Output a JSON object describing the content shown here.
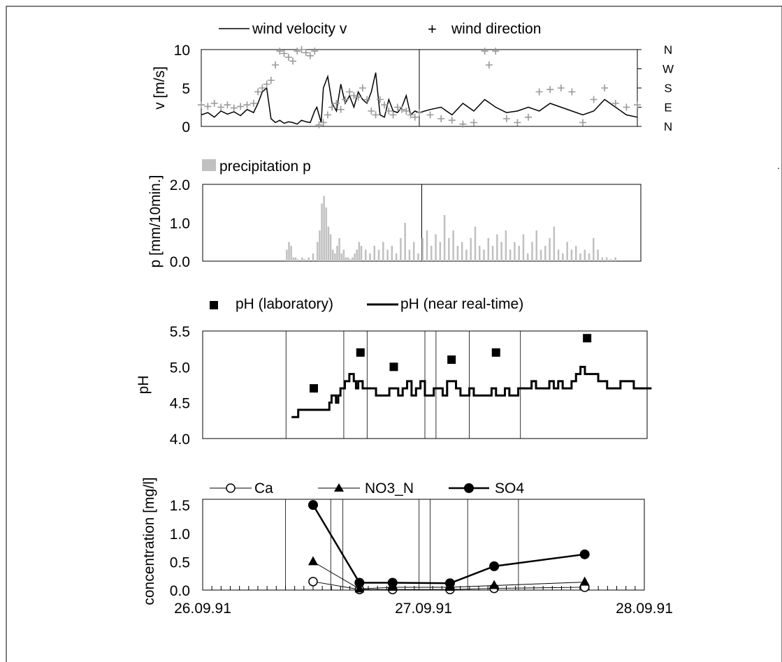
{
  "colors": {
    "wind_dir": "#999999",
    "precip": "#c0c0c0",
    "line": "#000000",
    "frame": "#000000"
  },
  "chart_data": [
    {
      "type": "line",
      "ylabel": "v [m/s]",
      "ylim": [
        0,
        10
      ],
      "yticks": [
        "0",
        "5",
        "10"
      ],
      "right_axis_labels": [
        "N",
        "E",
        "S",
        "W",
        "N"
      ],
      "legend": {
        "line": "wind velocity v",
        "markers": "wind direction"
      },
      "x_days": [
        0,
        2
      ],
      "series": [
        {
          "name": "wind velocity v",
          "x": [
            0.0,
            0.03,
            0.06,
            0.09,
            0.12,
            0.15,
            0.18,
            0.21,
            0.24,
            0.26,
            0.28,
            0.3,
            0.32,
            0.34,
            0.36,
            0.38,
            0.4,
            0.42,
            0.44,
            0.46,
            0.48,
            0.5,
            0.52,
            0.53,
            0.55,
            0.56,
            0.58,
            0.6,
            0.62,
            0.64,
            0.66,
            0.68,
            0.7,
            0.72,
            0.74,
            0.76,
            0.78,
            0.8,
            0.82,
            0.84,
            0.86,
            0.88,
            0.9,
            0.92,
            0.94,
            0.96,
            0.98,
            1.0,
            1.05,
            1.1,
            1.15,
            1.2,
            1.25,
            1.3,
            1.35,
            1.4,
            1.45,
            1.5,
            1.55,
            1.6,
            1.65,
            1.7,
            1.75,
            1.8,
            1.85,
            1.9,
            1.95,
            2.0
          ],
          "values": [
            1.5,
            1.8,
            1.2,
            2.0,
            1.6,
            1.9,
            1.4,
            2.2,
            1.8,
            3.0,
            4.5,
            5.0,
            1.0,
            0.5,
            0.8,
            0.4,
            0.6,
            0.5,
            0.3,
            0.8,
            0.6,
            0.5,
            2.0,
            2.5,
            0.5,
            5.0,
            6.5,
            3.0,
            2.0,
            5.5,
            3.0,
            4.0,
            2.5,
            4.5,
            3.5,
            3.0,
            4.5,
            7.0,
            1.5,
            1.2,
            3.5,
            2.0,
            1.8,
            2.5,
            4.0,
            1.5,
            2.0,
            1.8,
            2.2,
            2.5,
            1.5,
            3.0,
            2.0,
            3.5,
            2.5,
            1.8,
            2.0,
            2.5,
            2.0,
            3.0,
            2.5,
            2.0,
            1.5,
            2.0,
            3.5,
            2.5,
            1.5,
            1.2
          ]
        },
        {
          "name": "wind direction",
          "x": [
            0.0,
            0.03,
            0.06,
            0.09,
            0.12,
            0.15,
            0.18,
            0.21,
            0.24,
            0.26,
            0.28,
            0.3,
            0.32,
            0.34,
            0.36,
            0.38,
            0.4,
            0.42,
            0.44,
            0.46,
            0.48,
            0.5,
            0.52,
            0.54,
            0.56,
            0.58,
            0.6,
            0.62,
            0.64,
            0.66,
            0.68,
            0.7,
            0.72,
            0.74,
            0.76,
            0.78,
            0.8,
            0.82,
            0.84,
            0.86,
            0.88,
            0.9,
            0.92,
            0.94,
            0.96,
            0.98,
            1.0,
            1.05,
            1.1,
            1.15,
            1.2,
            1.25,
            1.3,
            1.32,
            1.35,
            1.4,
            1.45,
            1.5,
            1.55,
            1.6,
            1.65,
            1.7,
            1.75,
            1.8,
            1.85,
            1.9,
            1.95,
            2.0
          ],
          "values": [
            2.8,
            2.6,
            3.0,
            2.5,
            2.8,
            2.4,
            2.6,
            2.8,
            3.0,
            4.5,
            5.0,
            5.5,
            6.0,
            8.0,
            9.8,
            9.5,
            9.0,
            8.5,
            9.8,
            10.0,
            9.6,
            9.2,
            9.8,
            0.2,
            0.5,
            1.5,
            2.5,
            3.0,
            2.2,
            3.5,
            4.5,
            4.0,
            3.8,
            5.0,
            3.5,
            2.0,
            1.5,
            3.5,
            2.8,
            2.0,
            1.5,
            2.5,
            2.2,
            2.0,
            1.5,
            1.2,
            1.8,
            1.5,
            1.0,
            0.8,
            0.3,
            0.5,
            9.8,
            8.0,
            9.8,
            1.0,
            0.5,
            1.2,
            4.5,
            4.8,
            5.0,
            4.5,
            0.5,
            3.5,
            5.0,
            3.0,
            2.5,
            2.8
          ]
        }
      ]
    },
    {
      "type": "bar",
      "ylabel": "p [mm/10min.]",
      "ylim": [
        0,
        2
      ],
      "yticks": [
        "0.0",
        "1.0",
        "2.0"
      ],
      "legend": {
        "bars": "precipitation p"
      },
      "x_days": [
        0,
        2
      ],
      "x": [
        0.38,
        0.39,
        0.4,
        0.41,
        0.42,
        0.43,
        0.45,
        0.46,
        0.48,
        0.5,
        0.52,
        0.53,
        0.54,
        0.55,
        0.56,
        0.57,
        0.58,
        0.59,
        0.6,
        0.61,
        0.62,
        0.63,
        0.64,
        0.65,
        0.66,
        0.67,
        0.68,
        0.69,
        0.7,
        0.71,
        0.72,
        0.74,
        0.76,
        0.78,
        0.8,
        0.82,
        0.84,
        0.86,
        0.88,
        0.9,
        0.92,
        0.94,
        0.96,
        0.98,
        1.0,
        1.02,
        1.04,
        1.06,
        1.08,
        1.1,
        1.12,
        1.14,
        1.16,
        1.18,
        1.2,
        1.22,
        1.24,
        1.26,
        1.28,
        1.3,
        1.32,
        1.34,
        1.36,
        1.38,
        1.4,
        1.42,
        1.44,
        1.46,
        1.48,
        1.5,
        1.52,
        1.54,
        1.56,
        1.58,
        1.6,
        1.62,
        1.64,
        1.66,
        1.68,
        1.7,
        1.72,
        1.74,
        1.76,
        1.78,
        1.8,
        1.82,
        1.84,
        1.86,
        1.88
      ],
      "values": [
        0.3,
        0.5,
        0.4,
        0.1,
        0.1,
        0.05,
        0.1,
        0.05,
        0.1,
        0.2,
        0.5,
        0.8,
        1.5,
        1.7,
        1.4,
        0.9,
        0.7,
        0.3,
        0.2,
        0.4,
        0.6,
        0.2,
        0.3,
        0.1,
        0.1,
        0.05,
        0.1,
        0.2,
        0.3,
        0.5,
        0.4,
        0.3,
        0.2,
        0.4,
        0.3,
        0.5,
        0.3,
        0.4,
        0.2,
        0.6,
        1.0,
        0.3,
        0.5,
        0.2,
        0.6,
        0.8,
        0.4,
        0.7,
        0.5,
        1.2,
        0.6,
        0.8,
        0.4,
        0.5,
        0.3,
        0.6,
        0.9,
        0.4,
        0.3,
        0.6,
        0.4,
        0.7,
        0.5,
        0.8,
        0.3,
        0.5,
        0.4,
        0.7,
        0.2,
        0.5,
        0.8,
        0.3,
        0.4,
        0.6,
        0.9,
        0.3,
        0.2,
        0.5,
        0.3,
        0.4,
        0.2,
        0.3,
        0.2,
        0.6,
        0.3,
        0.1,
        0.1,
        0.05,
        0.1
      ]
    },
    {
      "type": "line",
      "ylabel": "pH",
      "ylim": [
        4.0,
        5.5
      ],
      "yticks": [
        "4.0",
        "4.5",
        "5.0",
        "5.5"
      ],
      "legend": {
        "markers": "pH  (laboratory)",
        "line": "pH (near real-time)"
      },
      "x_days": [
        0,
        2
      ],
      "sample_boundaries": [
        0.375,
        0.635,
        0.74,
        1.0,
        1.05,
        1.2,
        1.43
      ],
      "series": [
        {
          "name": "pH  (laboratory)",
          "x": [
            0.5,
            0.71,
            0.86,
            1.12,
            1.32,
            1.73
          ],
          "values": [
            4.7,
            5.2,
            5.0,
            5.1,
            5.2,
            5.4
          ]
        },
        {
          "name": "pH (near real-time)",
          "x": [
            0.4,
            0.42,
            0.43,
            0.55,
            0.57,
            0.58,
            0.6,
            0.61,
            0.62,
            0.64,
            0.66,
            0.68,
            0.69,
            0.7,
            0.72,
            0.74,
            0.76,
            0.78,
            0.8,
            0.82,
            0.84,
            0.86,
            0.88,
            0.9,
            0.92,
            0.94,
            0.96,
            0.98,
            1.0,
            1.02,
            1.04,
            1.06,
            1.08,
            1.1,
            1.12,
            1.14,
            1.16,
            1.18,
            1.2,
            1.22,
            1.24,
            1.26,
            1.28,
            1.3,
            1.32,
            1.34,
            1.36,
            1.38,
            1.4,
            1.42,
            1.44,
            1.46,
            1.48,
            1.5,
            1.52,
            1.54,
            1.56,
            1.58,
            1.6,
            1.62,
            1.64,
            1.66,
            1.68,
            1.7,
            1.72,
            1.74,
            1.76,
            1.78,
            1.8,
            1.82,
            1.84,
            1.86,
            1.88,
            1.9,
            1.92,
            1.94,
            1.96,
            1.98,
            2.0,
            2.02
          ],
          "values": [
            4.3,
            4.3,
            4.4,
            4.4,
            4.5,
            4.6,
            4.5,
            4.6,
            4.7,
            4.8,
            4.9,
            4.8,
            4.7,
            4.8,
            4.7,
            4.7,
            4.7,
            4.6,
            4.6,
            4.6,
            4.7,
            4.7,
            4.6,
            4.7,
            4.8,
            4.6,
            4.7,
            4.8,
            4.6,
            4.6,
            4.7,
            4.7,
            4.6,
            4.8,
            4.8,
            4.7,
            4.6,
            4.6,
            4.7,
            4.6,
            4.6,
            4.6,
            4.6,
            4.7,
            4.6,
            4.6,
            4.7,
            4.6,
            4.6,
            4.7,
            4.7,
            4.7,
            4.8,
            4.7,
            4.7,
            4.7,
            4.8,
            4.7,
            4.8,
            4.7,
            4.7,
            4.8,
            4.9,
            5.0,
            4.9,
            4.9,
            4.9,
            4.8,
            4.8,
            4.7,
            4.7,
            4.7,
            4.8,
            4.8,
            4.8,
            4.7,
            4.7,
            4.7,
            4.7,
            4.7
          ]
        }
      ]
    },
    {
      "type": "line",
      "ylabel": "concentration [mg/l]",
      "ylim": [
        0,
        1.6
      ],
      "yticks": [
        "0.0",
        "0.5",
        "1.0",
        "1.5"
      ],
      "xticks": [
        "26.09.91",
        "27.09.91",
        "28.09.91"
      ],
      "x_days": [
        0,
        2
      ],
      "sample_boundaries": [
        0.375,
        0.58,
        0.635,
        0.98,
        1.03,
        1.2,
        1.43
      ],
      "series": [
        {
          "name": "Ca",
          "x": [
            0.5,
            0.71,
            0.86,
            1.12,
            1.32,
            1.73
          ],
          "values": [
            0.15,
            0.01,
            0.01,
            0.01,
            0.03,
            0.05
          ]
        },
        {
          "name": "NO3_N",
          "x": [
            0.5,
            0.71,
            0.86,
            1.12,
            1.32,
            1.73
          ],
          "values": [
            0.5,
            0.02,
            0.05,
            0.05,
            0.08,
            0.14
          ]
        },
        {
          "name": "SO4",
          "x": [
            0.5,
            0.71,
            0.86,
            1.12,
            1.32,
            1.73
          ],
          "values": [
            1.5,
            0.13,
            0.13,
            0.12,
            0.42,
            0.63
          ]
        }
      ]
    }
  ]
}
